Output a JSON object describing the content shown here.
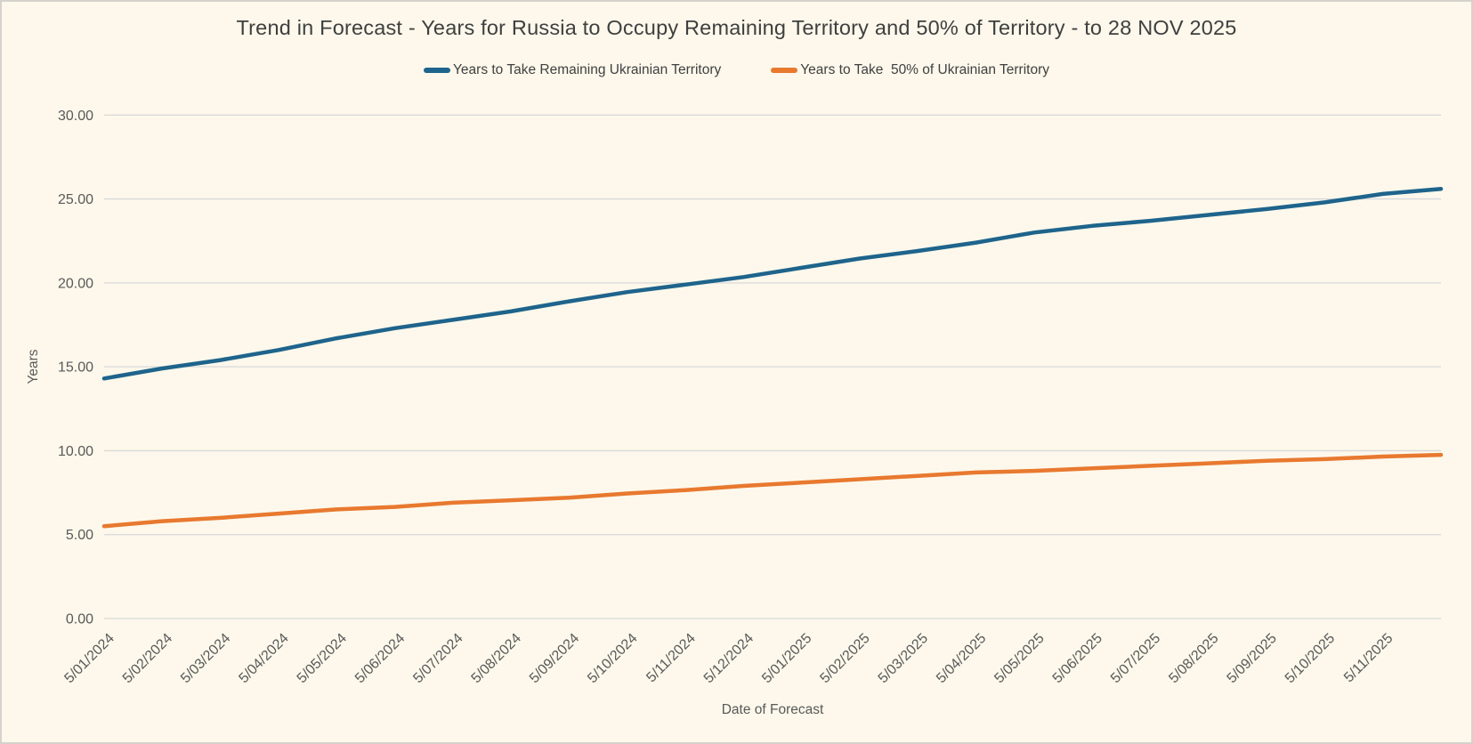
{
  "window": {
    "background_color": "#FDF8EB",
    "border_color": "#D5D2CE",
    "gridline_color": "#D9D9D9",
    "axis_text_color": "#595959",
    "title_text_color": "#3F3F3F"
  },
  "chart_data": {
    "type": "line",
    "title": "Trend in Forecast - Years for Russia to Occupy Remaining Territory and 50% of Territory - to 28 NOV 2025",
    "xlabel": "Date of Forecast",
    "ylabel": "Years",
    "ylim": [
      0,
      30
    ],
    "ytick_step": 5,
    "ytick_labels": [
      "0.00",
      "5.00",
      "10.00",
      "15.00",
      "20.00",
      "25.00",
      "30.00"
    ],
    "grid": true,
    "legend_position": "top-center",
    "categories": [
      "5/01/2024",
      "5/02/2024",
      "5/03/2024",
      "5/04/2024",
      "5/05/2024",
      "5/06/2024",
      "5/07/2024",
      "5/08/2024",
      "5/09/2024",
      "5/10/2024",
      "5/11/2024",
      "5/12/2024",
      "5/01/2025",
      "5/02/2025",
      "5/03/2025",
      "5/04/2025",
      "5/05/2025",
      "5/06/2025",
      "5/07/2025",
      "5/08/2025",
      "5/09/2025",
      "5/10/2025",
      "5/11/2025"
    ],
    "final_unlabeled_point": "28 NOV 2025",
    "series": [
      {
        "name": "Years to Take Remaining Ukrainian Territory",
        "color": "#1E648C",
        "values": [
          14.3,
          14.9,
          15.4,
          16.0,
          16.7,
          17.3,
          17.8,
          18.3,
          18.9,
          19.45,
          19.9,
          20.35,
          20.9,
          21.45,
          21.9,
          22.4,
          23.0,
          23.4,
          23.7,
          24.05,
          24.4,
          24.8,
          25.3,
          25.6
        ]
      },
      {
        "name": "Years to Take  50% of Ukrainian Territory",
        "color": "#E8792F",
        "values": [
          5.5,
          5.8,
          6.0,
          6.25,
          6.5,
          6.65,
          6.9,
          7.05,
          7.2,
          7.45,
          7.65,
          7.9,
          8.1,
          8.3,
          8.5,
          8.7,
          8.8,
          8.95,
          9.1,
          9.25,
          9.4,
          9.5,
          9.65,
          9.75
        ]
      }
    ]
  }
}
